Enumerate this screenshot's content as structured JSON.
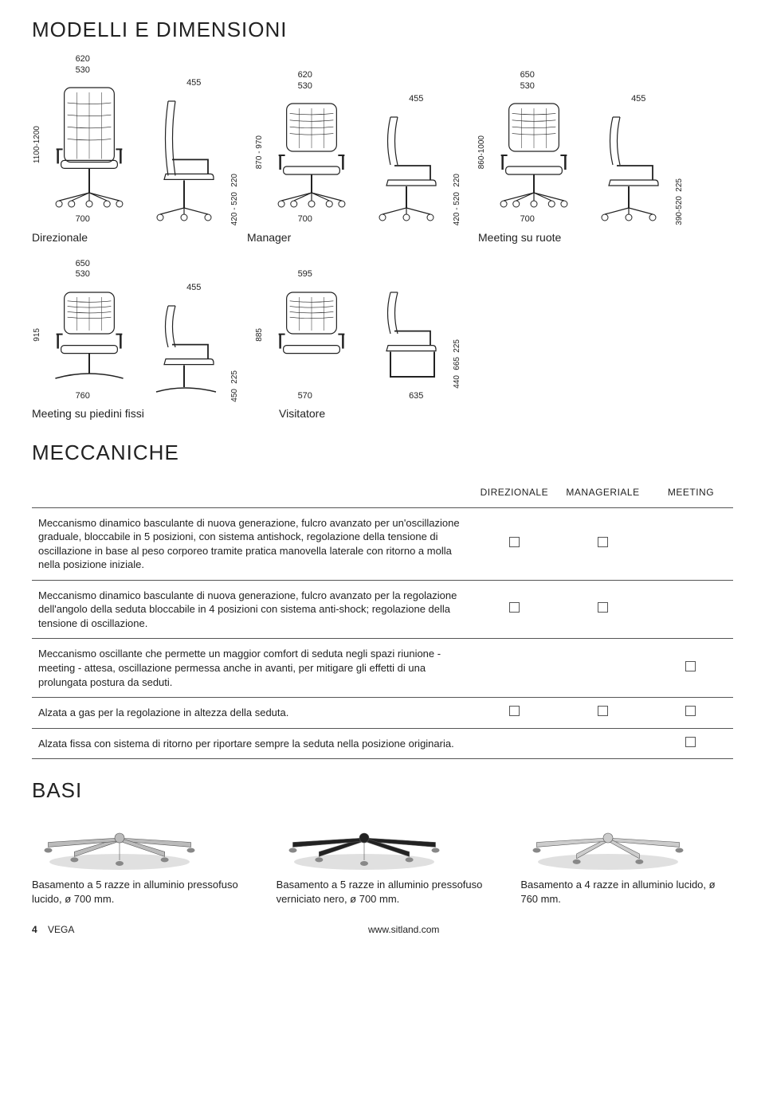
{
  "headings": {
    "models": "MODELLI E DIMENSIONI",
    "mech": "MECCANICHE",
    "basi": "BASI"
  },
  "row1": {
    "chairs": [
      {
        "name": "direzionale-front",
        "top_dims": [
          "620",
          "530"
        ],
        "bottom_dim": "700",
        "left_dim": "1100-1200"
      },
      {
        "name": "direzionale-side",
        "top_dims": [
          "455"
        ],
        "right_dims": [
          "220",
          "420 - 520"
        ]
      },
      {
        "name": "manager-front",
        "top_dims": [
          "620",
          "530"
        ],
        "bottom_dim": "700",
        "left_dim": "870 - 970"
      },
      {
        "name": "manager-side",
        "top_dims": [
          "455"
        ],
        "right_dims": [
          "220",
          "420 - 520"
        ]
      },
      {
        "name": "meeting-wheels-front",
        "top_dims": [
          "650",
          "530"
        ],
        "bottom_dim": "700",
        "left_dim": "860-1000"
      },
      {
        "name": "meeting-wheels-side",
        "top_dims": [
          "455"
        ],
        "right_dims": [
          "225",
          "390-520"
        ]
      }
    ],
    "labels": [
      "Direzionale",
      "Manager",
      "Meeting su ruote"
    ]
  },
  "row2": {
    "chairs": [
      {
        "name": "meeting-fixed-front",
        "top_dims": [
          "650",
          "530"
        ],
        "bottom_dim": "760",
        "left_dim": "915"
      },
      {
        "name": "meeting-fixed-side",
        "top_dims": [
          "455"
        ],
        "right_dims": [
          "225",
          "450"
        ]
      },
      {
        "name": "visitor-front",
        "top_dims": [
          "595"
        ],
        "bottom_dim": "570",
        "left_dim": "885"
      },
      {
        "name": "visitor-side",
        "bottom_dim": "635",
        "right_dims": [
          "225",
          "665",
          "440"
        ]
      }
    ],
    "labels": [
      "Meeting su piedini fissi",
      "Visitatore"
    ]
  },
  "mech": {
    "columns": [
      "DIREZIONALE",
      "MANAGERIALE",
      "MEETING"
    ],
    "rows": [
      {
        "desc": "Meccanismo dinamico basculante di nuova generazione, fulcro avanzato per un'oscillazione graduale, bloccabile in 5 posizioni, con sistema antishock, regolazione della tensione di oscillazione in base al peso corporeo tramite pratica manovella laterale con ritorno a molla nella posizione iniziale.",
        "checks": [
          true,
          true,
          false
        ]
      },
      {
        "desc": "Meccanismo dinamico basculante di nuova generazione, fulcro avanzato per la regolazione dell'angolo della seduta bloccabile in 4 posizioni con sistema anti-shock; regolazione della tensione di oscillazione.",
        "checks": [
          true,
          true,
          false
        ]
      },
      {
        "desc": "Meccanismo oscillante che permette un maggior comfort di seduta negli spazi riunione - meeting - attesa, oscillazione permessa anche in avanti, per mitigare gli effetti di una prolungata postura da seduti.",
        "checks": [
          false,
          false,
          true
        ]
      },
      {
        "desc": "Alzata a gas per la regolazione in altezza della seduta.",
        "checks": [
          true,
          true,
          true
        ]
      },
      {
        "desc": "Alzata fissa con sistema di ritorno per riportare sempre la seduta nella posizione originaria.",
        "checks": [
          false,
          false,
          true
        ]
      }
    ]
  },
  "basi": [
    {
      "name": "base-alu-polished-5",
      "caption": "Basamento a 5 razze in alluminio pressofuso lucido, ø 700 mm.",
      "fill": "#bbbbbb",
      "spokes": 5
    },
    {
      "name": "base-alu-black-5",
      "caption": "Basamento a 5 razze in alluminio pressofuso verniciato nero, ø 700 mm.",
      "fill": "#222222",
      "spokes": 5
    },
    {
      "name": "base-alu-polished-4",
      "caption": "Basamento a 4 razze in alluminio lucido, ø 760 mm.",
      "fill": "#cccccc",
      "spokes": 4
    }
  ],
  "footer": {
    "page": "4",
    "product": "VEGA",
    "url": "www.sitland.com"
  },
  "colors": {
    "line": "#222222",
    "light": "#ffffff"
  }
}
